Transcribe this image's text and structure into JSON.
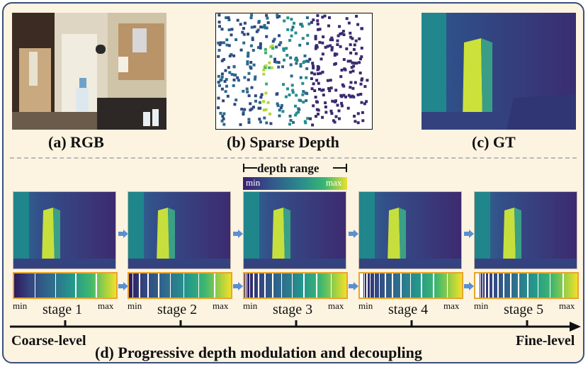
{
  "panels": {
    "rgb_caption": "(a) RGB",
    "sparse_caption": "(b) Sparse Depth",
    "gt_caption": "(c) GT"
  },
  "depth_range": {
    "label": "depth range",
    "min": "min",
    "max": "max"
  },
  "stages": [
    {
      "label": "stage 1",
      "min": "min",
      "max": "max",
      "intervals": 5
    },
    {
      "label": "stage 2",
      "min": "min",
      "max": "max",
      "intervals": 9
    },
    {
      "label": "stage 3",
      "min": "min",
      "max": "max",
      "intervals": 13
    },
    {
      "label": "stage 4",
      "min": "min",
      "max": "max",
      "intervals": 17
    },
    {
      "label": "stage 5",
      "min": "min",
      "max": "max",
      "intervals": 21
    }
  ],
  "axis": {
    "left": "Coarse-level",
    "right": "Fine-level"
  },
  "title": "(d) Progressive depth modulation and decoupling",
  "colors": {
    "border": "#3a4f7a",
    "background": "#fcf3e1",
    "arrow": "#5b8fd1",
    "bar_border": "#e8a52e"
  }
}
